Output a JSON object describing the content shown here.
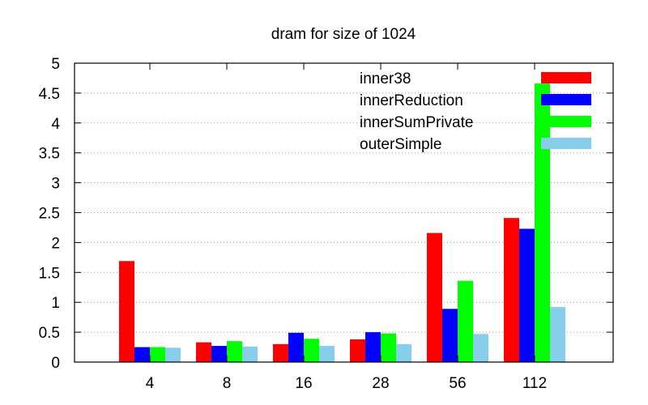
{
  "chart_data": {
    "type": "bar",
    "title": "dram for size of 1024",
    "xlabel": "",
    "ylabel": "",
    "categories": [
      "4",
      "8",
      "16",
      "28",
      "56",
      "112"
    ],
    "ylim": [
      0,
      5
    ],
    "yticks": [
      0,
      0.5,
      1,
      1.5,
      2,
      2.5,
      3,
      3.5,
      4,
      4.5,
      5
    ],
    "ytick_labels": [
      "0",
      "0.5",
      "1",
      "1.5",
      "2",
      "2.5",
      "3",
      "3.5",
      "4",
      "4.5",
      "5"
    ],
    "grid": true,
    "legend_position": "top-right",
    "series": [
      {
        "name": "inner38",
        "color": "#ff0000",
        "values": [
          1.69,
          0.33,
          0.3,
          0.38,
          2.16,
          2.41
        ]
      },
      {
        "name": "innerReduction",
        "color": "#0000ff",
        "values": [
          0.25,
          0.27,
          0.49,
          0.5,
          0.89,
          2.23
        ]
      },
      {
        "name": "innerSumPrivate",
        "color": "#00ff00",
        "values": [
          0.25,
          0.35,
          0.39,
          0.48,
          1.36,
          4.66
        ]
      },
      {
        "name": "outerSimple",
        "color": "#87ceeb",
        "values": [
          0.24,
          0.26,
          0.27,
          0.3,
          0.47,
          0.92
        ]
      }
    ]
  }
}
